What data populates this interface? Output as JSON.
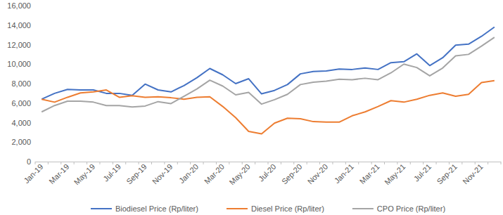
{
  "chart_data": {
    "type": "line",
    "categories": [
      "Jan-19",
      null,
      "Mar-19",
      null,
      "May-19",
      null,
      "Jul-19",
      null,
      "Sep-19",
      null,
      "Nov-19",
      null,
      "Jan-20",
      null,
      "Mar-20",
      null,
      "May-20",
      null,
      "Jul-20",
      null,
      "Sep-20",
      null,
      "Nov-20",
      null,
      "Jan-21",
      null,
      "Mar-21",
      null,
      "May-21",
      null,
      "Jul-21",
      null,
      "Sep-21",
      null,
      "Nov-21",
      null
    ],
    "series": [
      {
        "name": "Biodiesel Price (Rp/liter)",
        "color": "#4472c4",
        "values": [
          6400,
          7000,
          7400,
          7350,
          7350,
          7000,
          7000,
          6800,
          7950,
          7350,
          7150,
          7800,
          8600,
          9550,
          8900,
          8000,
          8500,
          6950,
          7300,
          7900,
          9000,
          9250,
          9300,
          9500,
          9450,
          9600,
          9450,
          10150,
          10250,
          11050,
          9850,
          10650,
          11950,
          12050,
          12850,
          13800
        ]
      },
      {
        "name": "Diesel Price (Rp/liter)",
        "color": "#ed7d31",
        "values": [
          6400,
          6100,
          6600,
          7050,
          7150,
          7350,
          6600,
          6750,
          6600,
          6650,
          6550,
          6400,
          6600,
          6650,
          5650,
          4500,
          3100,
          2850,
          3950,
          4450,
          4400,
          4100,
          4050,
          4050,
          4700,
          5100,
          5650,
          6250,
          6100,
          6400,
          6800,
          7050,
          6700,
          6900,
          8100,
          8300
        ]
      },
      {
        "name": "CPO Price (Rp/liter)",
        "color": "#a5a5a5",
        "values": [
          5100,
          5750,
          6200,
          6200,
          6100,
          5750,
          5750,
          5600,
          5700,
          6150,
          5950,
          6700,
          7450,
          8350,
          7750,
          6850,
          7100,
          5900,
          6350,
          6900,
          7900,
          8150,
          8250,
          8450,
          8400,
          8550,
          8400,
          9100,
          10000,
          9650,
          8800,
          9600,
          10850,
          11000,
          11850,
          12750
        ]
      }
    ],
    "ylim": [
      0,
      16000
    ],
    "yticks": [
      0,
      {
        "value": 2000,
        "label": "2,000"
      },
      {
        "value": 4000,
        "label": "4,000"
      },
      {
        "value": 6000,
        "label": "6,000"
      },
      {
        "value": 8000,
        "label": "8,000"
      },
      {
        "value": 10000,
        "label": "10,000"
      },
      {
        "value": 12000,
        "label": "12,000"
      },
      {
        "value": 14000,
        "label": "14,000"
      },
      {
        "value": 16000,
        "label": "16,000"
      }
    ],
    "grid": false,
    "legend": "bottom"
  }
}
